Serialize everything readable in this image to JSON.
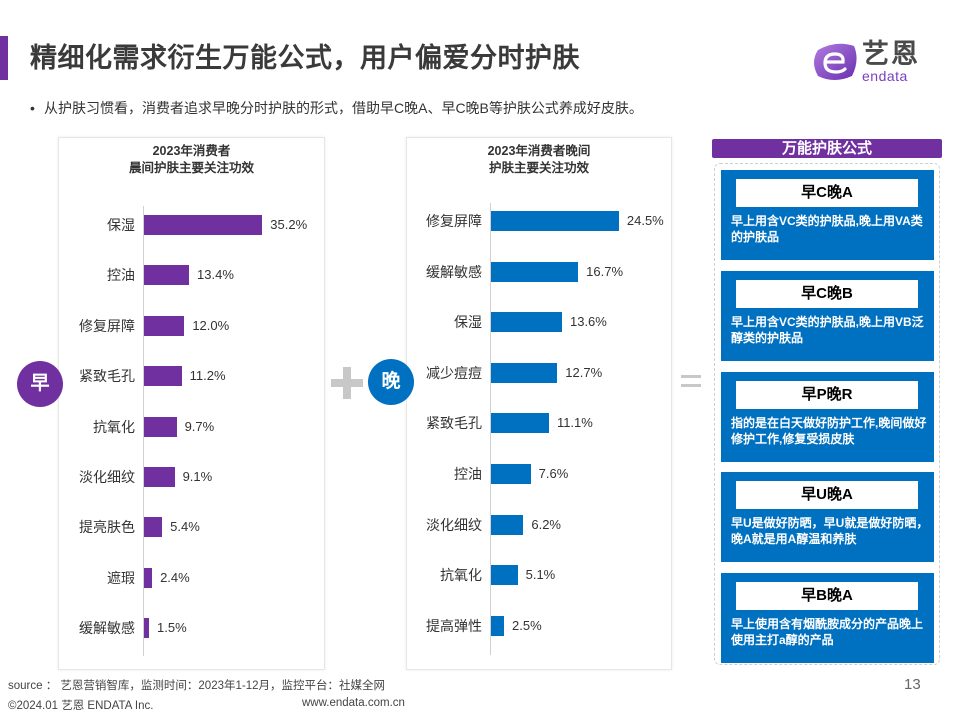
{
  "header": {
    "title": "精细化需求衍生万能公式，用户偏爱分时护肤",
    "logo_cn": "艺恩",
    "logo_en": "endata",
    "accent_color": "#7030a0"
  },
  "bullet": {
    "marker": "•",
    "text": "从护肤习惯看，消费者追求早晚分时护肤的形式，借助早C晚A、早C晚B等护肤公式养成好皮肤。"
  },
  "morning_badge": "早",
  "evening_badge": "晚",
  "chart_data": [
    {
      "type": "bar",
      "orientation": "horizontal",
      "title": "2023年消费者\n晨间护肤主要关注功效",
      "title_lines": [
        "2023年消费者",
        "晨间护肤主要关注功效"
      ],
      "categories": [
        "保湿",
        "控油",
        "修复屏障",
        "紧致毛孔",
        "抗氧化",
        "淡化细纹",
        "提亮肤色",
        "遮瑕",
        "缓解敏感"
      ],
      "values": [
        35.2,
        13.4,
        12.0,
        11.2,
        9.7,
        9.1,
        5.4,
        2.4,
        1.5
      ],
      "labels": [
        "35.2%",
        "13.4%",
        "12.0%",
        "11.2%",
        "9.7%",
        "9.1%",
        "5.4%",
        "2.4%",
        "1.5%"
      ],
      "unit": "%",
      "color": "#7030a0",
      "xlim": [
        0,
        40
      ],
      "grid": false,
      "legend": "none"
    },
    {
      "type": "bar",
      "orientation": "horizontal",
      "title": "2023年消费者晚间\n护肤主要关注功效",
      "title_lines": [
        "2023年消费者晚间",
        "护肤主要关注功效"
      ],
      "categories": [
        "修复屏障",
        "缓解敏感",
        "保湿",
        "减少痘痘",
        "紧致毛孔",
        "控油",
        "淡化细纹",
        "抗氧化",
        "提高弹性"
      ],
      "values": [
        24.5,
        16.7,
        13.6,
        12.7,
        11.1,
        7.6,
        6.2,
        5.1,
        2.5
      ],
      "labels": [
        "24.5%",
        "16.7%",
        "13.6%",
        "12.7%",
        "11.1%",
        "7.6%",
        "6.2%",
        "5.1%",
        "2.5%"
      ],
      "unit": "%",
      "color": "#0070c0",
      "xlim": [
        0,
        28
      ],
      "grid": false,
      "legend": "none"
    }
  ],
  "formulas": {
    "header": "万能护肤公式",
    "card_color": "#0070c0",
    "items": [
      {
        "label": "早C晚A",
        "desc": "早上用含VC类的护肤品,晚上用VA类的护肤品"
      },
      {
        "label": "早C晚B",
        "desc": "早上用含VC类的护肤品,晚上用VB泛醇类的护肤品"
      },
      {
        "label": "早P晚R",
        "desc": "指的是在白天做好防护工作,晚间做好修护工作,修复受损皮肤"
      },
      {
        "label": "早U晚A",
        "desc": "早U是做好防晒，早U就是做好防晒，晚A就是用A醇温和养肤"
      },
      {
        "label": "早B晚A",
        "desc": "早上使用含有烟酰胺成分的产品晚上使用主打a醇的产品"
      }
    ]
  },
  "footer": {
    "source": "source ： 艺恩营销智库，监测时间：2023年1-12月，监控平台：社媒全网",
    "copyright": "©2024.01  艺恩 ENDATA Inc.",
    "website": "www.endata.com.cn",
    "page_number": "13"
  }
}
